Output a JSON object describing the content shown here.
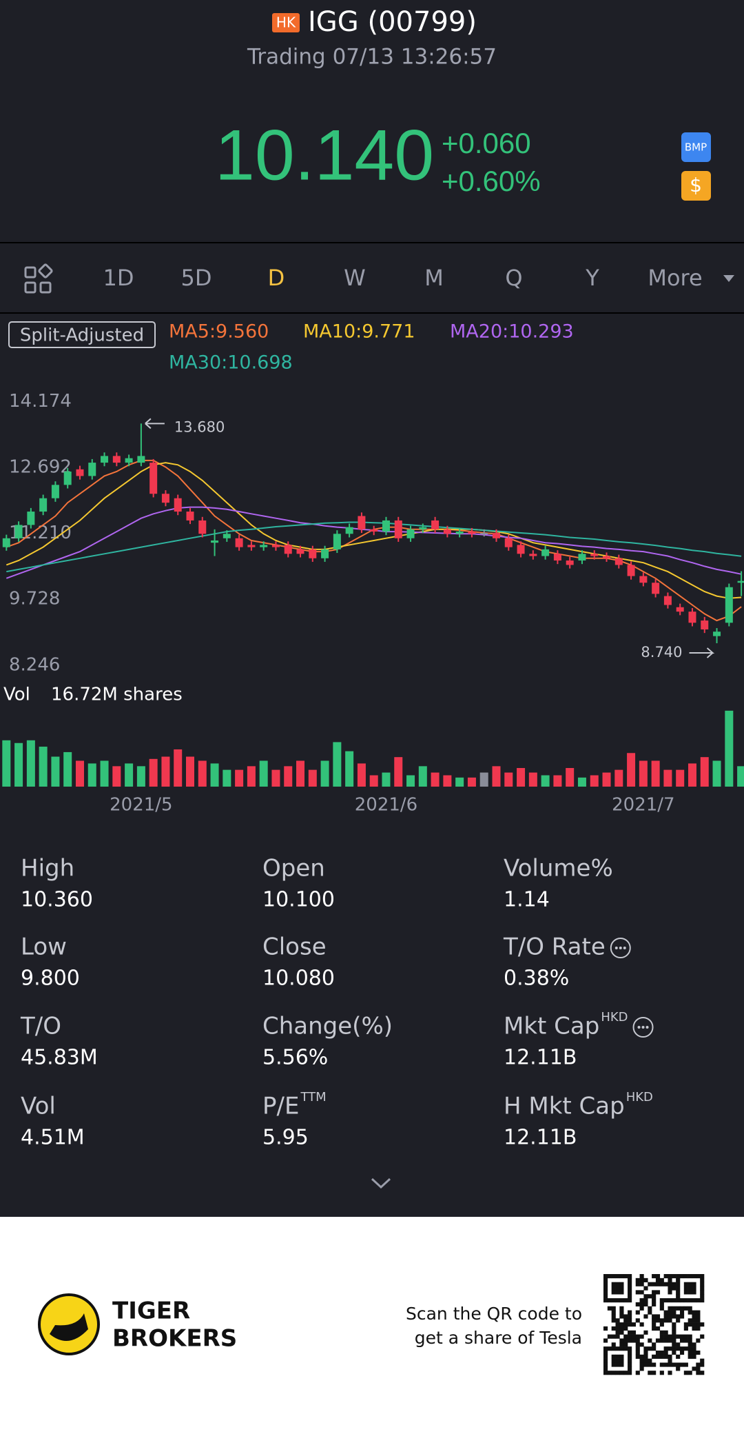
{
  "header": {
    "market": "HK",
    "title": "IGG (00799)",
    "status": "Trading 07/13 13:26:57"
  },
  "quote": {
    "price": "10.140",
    "change": "+0.060",
    "change_pct": "+0.60%",
    "badges": [
      "BMP",
      "$"
    ]
  },
  "tabs": [
    "1D",
    "5D",
    "D",
    "W",
    "M",
    "Q",
    "Y",
    "More"
  ],
  "active_tab": 2,
  "chart_data": {
    "type": "candlestick",
    "adjust": "Split-Adjusted",
    "up_color": "#33c27a",
    "down_color": "#f0384f",
    "flat_color": "#8a8d99",
    "ylim": [
      7.98,
      14.46
    ],
    "yticks": [
      14.174,
      12.692,
      {
        "value": 11.21,
        "label": "11.210"
      },
      9.728,
      8.246
    ],
    "categories": [
      null,
      null,
      null,
      null,
      null,
      null,
      null,
      null,
      null,
      null,
      null,
      "2021/5",
      null,
      null,
      null,
      null,
      null,
      null,
      null,
      null,
      null,
      null,
      null,
      null,
      null,
      null,
      null,
      null,
      null,
      null,
      null,
      "2021/6",
      null,
      null,
      null,
      null,
      null,
      null,
      null,
      null,
      null,
      null,
      null,
      null,
      null,
      null,
      null,
      null,
      null,
      null,
      null,
      null,
      "2021/7",
      null,
      null,
      null,
      null,
      null,
      null,
      null,
      null
    ],
    "open": [
      10.9,
      11.1,
      11.4,
      11.7,
      12.0,
      12.3,
      12.65,
      12.5,
      12.8,
      12.95,
      12.8,
      12.8,
      12.8,
      12.1,
      12.0,
      11.7,
      11.5,
      11.0,
      11.1,
      11.1,
      10.95,
      10.9,
      10.95,
      10.95,
      10.85,
      10.85,
      10.65,
      10.85,
      11.2,
      11.6,
      11.3,
      11.25,
      11.5,
      11.1,
      11.3,
      11.5,
      11.3,
      11.2,
      11.25,
      11.22,
      11.22,
      11.1,
      10.95,
      10.75,
      10.7,
      10.75,
      10.6,
      10.6,
      10.75,
      10.7,
      10.65,
      10.5,
      10.25,
      10.1,
      9.8,
      9.55,
      9.45,
      9.25,
      8.9,
      9.2,
      10.1
    ],
    "high": [
      11.18,
      11.48,
      11.78,
      12.08,
      12.38,
      12.68,
      12.73,
      12.88,
      13.03,
      13.03,
      12.98,
      13.68,
      12.88,
      12.18,
      12.08,
      11.78,
      11.58,
      11.3,
      11.28,
      11.18,
      11.03,
      11.03,
      11.03,
      11.03,
      10.93,
      10.93,
      10.93,
      11.28,
      11.43,
      11.68,
      11.38,
      11.58,
      11.58,
      11.38,
      11.43,
      11.58,
      11.38,
      11.33,
      11.33,
      11.3,
      11.3,
      11.18,
      11.03,
      10.83,
      10.93,
      10.83,
      10.68,
      10.83,
      10.83,
      10.78,
      10.73,
      10.58,
      10.33,
      10.18,
      9.88,
      9.63,
      9.53,
      9.33,
      9.08,
      10.08,
      10.36
    ],
    "low": [
      10.82,
      11.02,
      11.32,
      11.62,
      11.92,
      12.22,
      12.42,
      12.42,
      12.72,
      12.72,
      12.72,
      12.72,
      12.02,
      11.82,
      11.62,
      11.42,
      11.12,
      10.7,
      11.02,
      10.82,
      10.82,
      10.82,
      10.82,
      10.67,
      10.67,
      10.57,
      10.57,
      10.77,
      11.12,
      11.22,
      11.17,
      11.17,
      11.02,
      11.02,
      11.22,
      11.22,
      11.12,
      11.12,
      11.12,
      11.14,
      11.02,
      10.82,
      10.67,
      10.62,
      10.62,
      10.52,
      10.42,
      10.52,
      10.62,
      10.57,
      10.42,
      10.17,
      10.02,
      9.77,
      9.52,
      9.37,
      9.12,
      8.97,
      8.74,
      9.12,
      9.8
    ],
    "close": [
      11.1,
      11.4,
      11.7,
      12.0,
      12.3,
      12.6,
      12.5,
      12.8,
      12.95,
      12.8,
      12.9,
      12.95,
      12.1,
      11.9,
      11.7,
      11.5,
      11.2,
      11.05,
      11.2,
      10.9,
      10.9,
      10.95,
      10.9,
      10.75,
      10.75,
      10.65,
      10.85,
      11.2,
      11.35,
      11.3,
      11.25,
      11.5,
      11.1,
      11.3,
      11.35,
      11.3,
      11.2,
      11.25,
      11.2,
      11.22,
      11.1,
      10.9,
      10.75,
      10.7,
      10.85,
      10.6,
      10.5,
      10.75,
      10.7,
      10.65,
      10.5,
      10.25,
      10.1,
      9.85,
      9.6,
      9.45,
      9.2,
      9.05,
      9.0,
      10.0,
      10.14
    ],
    "series": [
      {
        "label": "MA5:9.560",
        "color": "#f4743b",
        "values": [
          10.9,
          11.0,
          11.2,
          11.4,
          11.6,
          11.9,
          12.1,
          12.3,
          12.5,
          12.6,
          12.75,
          12.85,
          12.85,
          12.7,
          12.5,
          12.2,
          11.9,
          11.6,
          11.4,
          11.2,
          11.05,
          11.0,
          10.95,
          10.9,
          10.85,
          10.8,
          10.8,
          10.85,
          11.0,
          11.15,
          11.3,
          11.35,
          11.35,
          11.3,
          11.3,
          11.3,
          11.3,
          11.28,
          11.25,
          11.22,
          11.2,
          11.1,
          11.0,
          10.9,
          10.8,
          10.75,
          10.7,
          10.65,
          10.65,
          10.65,
          10.6,
          10.5,
          10.35,
          10.2,
          10.0,
          9.8,
          9.6,
          9.4,
          9.25,
          9.35,
          9.56
        ]
      },
      {
        "label": "MA10:9.771",
        "color": "#f5c830",
        "values": [
          10.5,
          10.6,
          10.75,
          10.9,
          11.1,
          11.3,
          11.5,
          11.75,
          12.0,
          12.2,
          12.4,
          12.6,
          12.75,
          12.8,
          12.75,
          12.6,
          12.4,
          12.15,
          11.9,
          11.65,
          11.4,
          11.2,
          11.05,
          10.95,
          10.9,
          10.85,
          10.85,
          10.9,
          10.95,
          11.0,
          11.05,
          11.1,
          11.15,
          11.2,
          11.25,
          11.3,
          11.3,
          11.3,
          11.3,
          11.28,
          11.25,
          11.2,
          11.1,
          11.0,
          10.95,
          10.9,
          10.85,
          10.8,
          10.75,
          10.7,
          10.65,
          10.6,
          10.55,
          10.45,
          10.35,
          10.2,
          10.05,
          9.9,
          9.8,
          9.75,
          9.771
        ]
      },
      {
        "label": "MA20:10.293",
        "color": "#b066f0",
        "values": [
          10.2,
          10.3,
          10.4,
          10.5,
          10.6,
          10.7,
          10.8,
          10.95,
          11.1,
          11.25,
          11.4,
          11.55,
          11.65,
          11.72,
          11.78,
          11.8,
          11.8,
          11.78,
          11.75,
          11.7,
          11.65,
          11.6,
          11.55,
          11.5,
          11.45,
          11.42,
          11.38,
          11.35,
          11.33,
          11.3,
          11.28,
          11.25,
          11.25,
          11.24,
          11.23,
          11.22,
          11.21,
          11.2,
          11.2,
          11.18,
          11.15,
          11.12,
          11.1,
          11.05,
          11.0,
          10.98,
          10.95,
          10.92,
          10.9,
          10.87,
          10.85,
          10.82,
          10.8,
          10.75,
          10.7,
          10.62,
          10.55,
          10.47,
          10.4,
          10.35,
          10.293
        ]
      },
      {
        "label": "MA30:10.698",
        "color": "#2fb5a0",
        "values": [
          10.35,
          10.4,
          10.45,
          10.5,
          10.55,
          10.6,
          10.65,
          10.7,
          10.75,
          10.8,
          10.85,
          10.9,
          10.95,
          11.0,
          11.05,
          11.1,
          11.15,
          11.2,
          11.25,
          11.28,
          11.3,
          11.33,
          11.36,
          11.38,
          11.4,
          11.42,
          11.44,
          11.45,
          11.46,
          11.46,
          11.45,
          11.44,
          11.42,
          11.4,
          11.38,
          11.36,
          11.34,
          11.32,
          11.3,
          11.28,
          11.26,
          11.24,
          11.22,
          11.2,
          11.18,
          11.15,
          11.12,
          11.1,
          11.08,
          11.05,
          11.02,
          11.0,
          10.97,
          10.94,
          10.9,
          10.87,
          10.83,
          10.8,
          10.76,
          10.73,
          10.698
        ]
      }
    ],
    "annotations": [
      "13.680",
      "8.740"
    ],
    "vol_label": "Vol",
    "vol_value": "16.72M shares",
    "vol_ylim": [
      0,
      17
    ],
    "volume": [
      10.2,
      9.6,
      10.2,
      8.8,
      6.6,
      7.6,
      5.7,
      5.1,
      5.7,
      4.5,
      5.1,
      4.5,
      6.1,
      6.6,
      8.2,
      6.6,
      5.7,
      5.1,
      3.7,
      3.7,
      4.5,
      5.7,
      3.7,
      4.5,
      5.7,
      3.7,
      5.7,
      9.8,
      7.8,
      5.1,
      2.5,
      3.1,
      6.5,
      2.5,
      4.5,
      3.1,
      2.5,
      2.0,
      2.0,
      3.1,
      4.5,
      3.1,
      4.1,
      3.1,
      2.5,
      2.5,
      4.1,
      2.0,
      2.5,
      3.1,
      3.7,
      7.4,
      5.7,
      5.7,
      3.7,
      3.7,
      5.1,
      6.5,
      5.7,
      16.72,
      4.5
    ]
  },
  "stats": [
    {
      "label": "High",
      "value": "10.360"
    },
    {
      "label": "Open",
      "value": "10.100"
    },
    {
      "label": "Volume%",
      "value": "1.14"
    },
    {
      "label": "Low",
      "value": "9.800"
    },
    {
      "label": "Close",
      "value": "10.080"
    },
    {
      "label": "T/O Rate",
      "info": true,
      "value": "0.38%"
    },
    {
      "label": "T/O",
      "value": "45.83M"
    },
    {
      "label": "Change(%)",
      "value": "5.56%"
    },
    {
      "label": "Mkt Cap",
      "sup": "HKD",
      "info": true,
      "value": "12.11B"
    },
    {
      "label": "Vol",
      "value": "4.51M"
    },
    {
      "label": "P/E",
      "sup": "TTM",
      "value": "5.95"
    },
    {
      "label": "H Mkt Cap",
      "sup": "HKD",
      "value": "12.11B"
    }
  ],
  "footer": {
    "brand": [
      "TIGER",
      "BROKERS"
    ],
    "promo": [
      "Scan the QR code to",
      "get a share of Tesla"
    ]
  }
}
